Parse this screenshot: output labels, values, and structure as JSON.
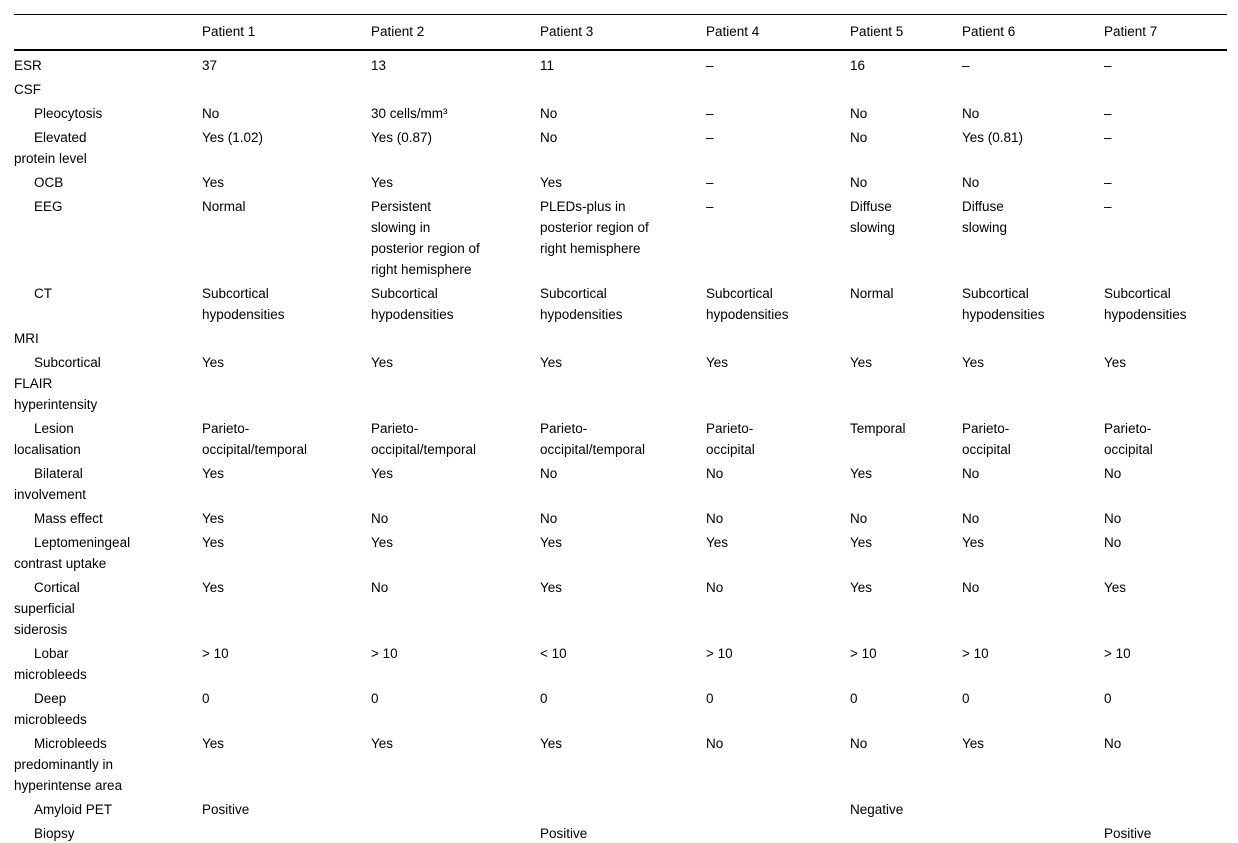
{
  "page": {
    "background_color": "#ffffff",
    "text_color": "#000000",
    "rule_color": "#000000"
  },
  "table": {
    "header": {
      "label": "",
      "columns": [
        "Patient 1",
        "Patient 2",
        "Patient 3",
        "Patient 4",
        "Patient 5",
        "Patient 6",
        "Patient 7"
      ]
    },
    "rows": [
      {
        "label": "ESR",
        "indent": false,
        "section": false,
        "values": [
          "37",
          "13",
          "11",
          "–",
          "16",
          "–",
          "–"
        ]
      },
      {
        "label": "CSF",
        "indent": false,
        "section": true,
        "values": [
          "",
          "",
          "",
          "",
          "",
          "",
          ""
        ]
      },
      {
        "label": "Pleocytosis",
        "indent": true,
        "section": false,
        "values": [
          "No",
          "30 cells/mm³",
          "No",
          "–",
          "No",
          "No",
          "–"
        ]
      },
      {
        "label": "Elevated\nprotein level",
        "indent": true,
        "section": false,
        "values": [
          "Yes (1.02)",
          "Yes (0.87)",
          "No",
          "–",
          "No",
          "Yes (0.81)",
          "–"
        ]
      },
      {
        "label": "OCB",
        "indent": true,
        "section": false,
        "values": [
          "Yes",
          "Yes",
          "Yes",
          "–",
          "No",
          "No",
          "–"
        ]
      },
      {
        "label": "EEG",
        "indent": true,
        "section": false,
        "values": [
          "Normal",
          "Persistent\nslowing in\nposterior region of\nright hemisphere",
          "PLEDs-plus in\nposterior region of\nright hemisphere",
          "–",
          "Diffuse\nslowing",
          "Diffuse\nslowing",
          "–"
        ]
      },
      {
        "label": "CT",
        "indent": true,
        "section": false,
        "values": [
          "Subcortical\nhypodensities",
          "Subcortical\nhypodensities",
          "Subcortical\nhypodensities",
          "Subcortical\nhypodensities",
          "Normal",
          "Subcortical\nhypodensities",
          "Subcortical\nhypodensities"
        ]
      },
      {
        "label": "MRI",
        "indent": false,
        "section": true,
        "values": [
          "",
          "",
          "",
          "",
          "",
          "",
          ""
        ]
      },
      {
        "label": "Subcortical\nFLAIR\nhyperintensity",
        "indent": true,
        "section": false,
        "values": [
          "Yes",
          "Yes",
          "Yes",
          "Yes",
          "Yes",
          "Yes",
          "Yes"
        ]
      },
      {
        "label": "Lesion\nlocalisation",
        "indent": true,
        "section": false,
        "values": [
          "Parieto-\noccipital/temporal",
          "Parieto-\noccipital/temporal",
          "Parieto-\noccipital/temporal",
          "Parieto-\noccipital",
          "Temporal",
          "Parieto-\noccipital",
          "Parieto-\noccipital"
        ]
      },
      {
        "label": "Bilateral\ninvolvement",
        "indent": true,
        "section": false,
        "values": [
          "Yes",
          "Yes",
          "No",
          "No",
          "Yes",
          "No",
          "No"
        ]
      },
      {
        "label": "Mass effect",
        "indent": true,
        "section": false,
        "values": [
          "Yes",
          "No",
          "No",
          "No",
          "No",
          "No",
          "No"
        ]
      },
      {
        "label": "Leptomeningeal\ncontrast uptake",
        "indent": true,
        "section": false,
        "values": [
          "Yes",
          "Yes",
          "Yes",
          "Yes",
          "Yes",
          "Yes",
          "No"
        ]
      },
      {
        "label": "Cortical\nsuperficial\nsiderosis",
        "indent": true,
        "section": false,
        "values": [
          "Yes",
          "No",
          "Yes",
          "No",
          "Yes",
          "No",
          "Yes"
        ]
      },
      {
        "label": "Lobar\nmicrobleeds",
        "indent": true,
        "section": false,
        "values": [
          "> 10",
          "> 10",
          "< 10",
          "> 10",
          "> 10",
          "> 10",
          "> 10"
        ]
      },
      {
        "label": "Deep\nmicrobleeds",
        "indent": true,
        "section": false,
        "values": [
          "0",
          "0",
          "0",
          "0",
          "0",
          "0",
          "0"
        ]
      },
      {
        "label": "Microbleeds\npredominantly in\nhyperintense area",
        "indent": true,
        "section": false,
        "values": [
          "Yes",
          "Yes",
          "Yes",
          "No",
          "No",
          "Yes",
          "No"
        ]
      },
      {
        "label": "Amyloid PET",
        "indent": true,
        "section": false,
        "values": [
          "Positive",
          "",
          "",
          "",
          "Negative",
          "",
          ""
        ]
      },
      {
        "label": "Biopsy",
        "indent": true,
        "section": false,
        "values": [
          "",
          "",
          "Positive",
          "",
          "",
          "",
          "Positive"
        ]
      }
    ]
  }
}
